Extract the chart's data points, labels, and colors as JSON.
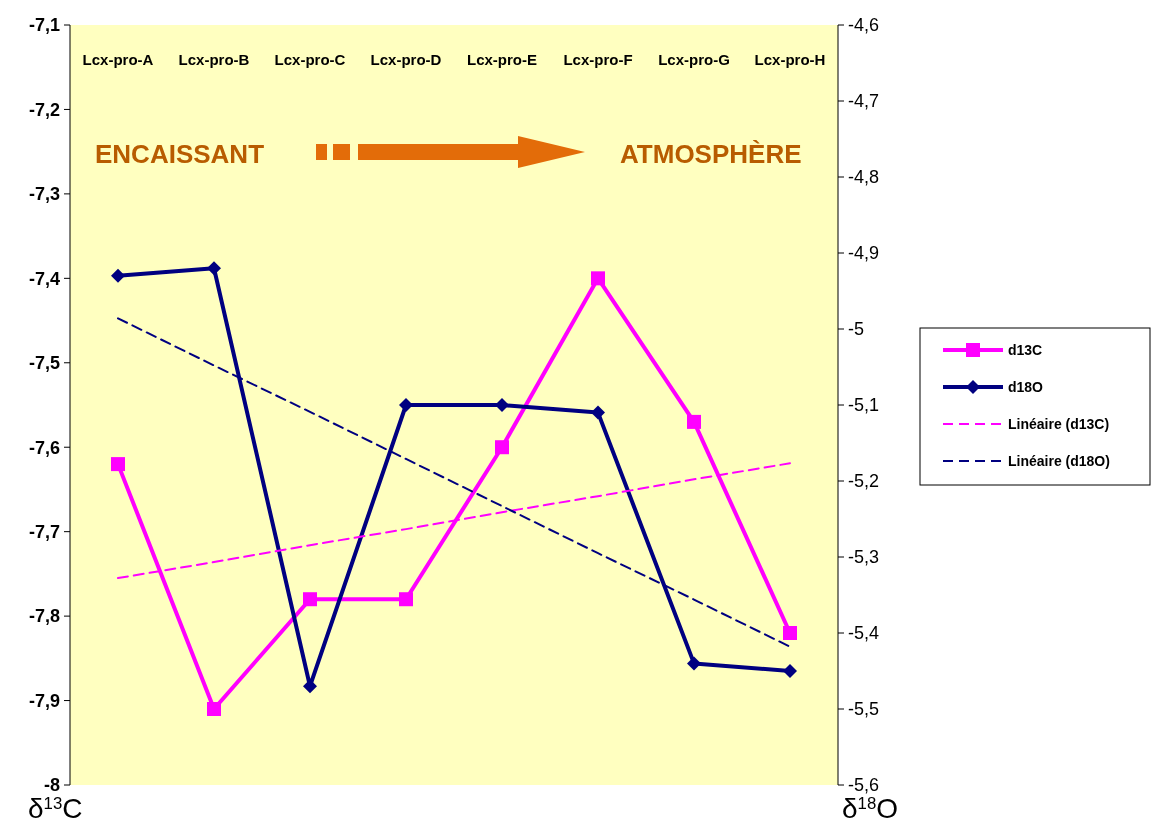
{
  "chart_data": {
    "type": "line",
    "categories": [
      "Lcx-pro-A",
      "Lcx-pro-B",
      "Lcx-pro-C",
      "Lcx-pro-D",
      "Lcx-pro-E",
      "Lcx-pro-F",
      "Lcx-pro-G",
      "Lcx-pro-H"
    ],
    "series": [
      {
        "name": "d13C",
        "color": "#ff00ff",
        "marker": "square",
        "line_style": "solid",
        "values": [
          -7.62,
          -7.91,
          -7.78,
          -7.78,
          -7.6,
          -7.4,
          -7.57,
          -7.82
        ]
      },
      {
        "name": "d18O",
        "color": "#000080",
        "marker": "diamond",
        "line_style": "solid",
        "axis": "y2",
        "values": [
          -4.93,
          -4.92,
          -5.47,
          -5.1,
          -5.1,
          -5.11,
          -5.44,
          -5.45
        ]
      },
      {
        "name": "Linéaire (d13C)",
        "color": "#ff00ff",
        "marker": "none",
        "line_style": "dashed",
        "values": [
          -7.755,
          -7.736,
          -7.716,
          -7.697,
          -7.677,
          -7.658,
          -7.638,
          -7.619
        ]
      },
      {
        "name": "Linéaire (d18O)",
        "color": "#000080",
        "marker": "none",
        "line_style": "dashed",
        "axis": "y2",
        "values": [
          -4.986,
          -5.048,
          -5.109,
          -5.171,
          -5.233,
          -5.295,
          -5.356,
          -5.418
        ]
      }
    ],
    "ylim": [
      -8,
      -7.1
    ],
    "yticks": [
      {
        "value": -8,
        "label": "-8"
      },
      {
        "value": -7.9,
        "label": "-7,9"
      },
      {
        "value": -7.8,
        "label": "-7,8"
      },
      {
        "value": -7.7,
        "label": "-7,7"
      },
      {
        "value": -7.6,
        "label": "-7,6"
      },
      {
        "value": -7.5,
        "label": "-7,5"
      },
      {
        "value": -7.4,
        "label": "-7,4"
      },
      {
        "value": -7.3,
        "label": "-7,3"
      },
      {
        "value": -7.2,
        "label": "-7,2"
      },
      {
        "value": -7.1,
        "label": "-7,1"
      }
    ],
    "y2lim": [
      -5.6,
      -4.6
    ],
    "y2ticks": [
      {
        "value": -5.6,
        "label": "-5,6"
      },
      {
        "value": -5.5,
        "label": "-5,5"
      },
      {
        "value": -5.4,
        "label": "-5,4"
      },
      {
        "value": -5.3,
        "label": "-5,3"
      },
      {
        "value": -5.2,
        "label": "-5,2"
      },
      {
        "value": -5.1,
        "label": "-5,1"
      },
      -5,
      {
        "value": -4.9,
        "label": "-4,9"
      },
      {
        "value": -4.8,
        "label": "-4,8"
      },
      {
        "value": -4.7,
        "label": "-4,7"
      },
      {
        "value": -4.6,
        "label": "-4,6"
      }
    ],
    "ylabel": "δ$^{13}$C",
    "y2label": "δ$^{18}$O",
    "annotations": [
      "ENCAISSANT",
      "ATMOSPHÈRE"
    ],
    "grid": false,
    "legend": "right"
  }
}
